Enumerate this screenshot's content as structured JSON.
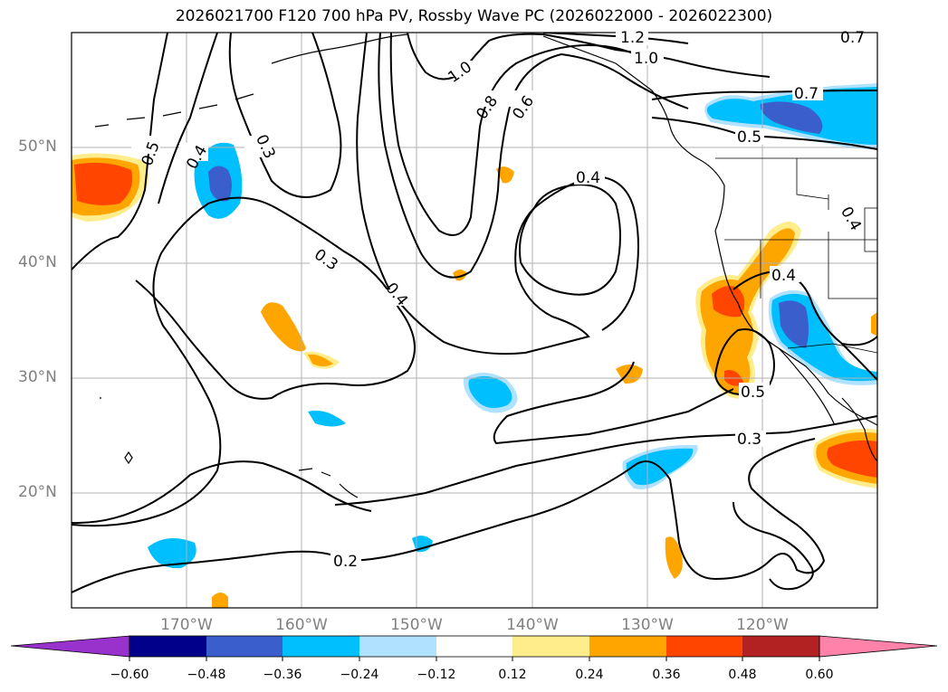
{
  "title": "2026021700 F120 700 hPa PV, Rossby Wave PC (2026022000 - 2026022300)",
  "lat_labels": [
    "50°N",
    "40°N",
    "30°N",
    "20°N"
  ],
  "lon_labels": [
    "170°W",
    "160°W",
    "150°W",
    "140°W",
    "130°W",
    "120°W"
  ],
  "contour_labels": [
    "1.2",
    "1.0",
    "1.0",
    "0.8",
    "0.6",
    "0.7",
    "0.7",
    "0.5",
    "0.5",
    "0.4",
    "0.3",
    "0.4",
    "0.3",
    "0.4",
    "0.4",
    "0.4",
    "0.5",
    "0.3",
    "0.2"
  ],
  "colorbar": {
    "ticks": [
      "−0.60",
      "−0.48",
      "−0.36",
      "−0.24",
      "−0.12",
      "0.12",
      "0.24",
      "0.36",
      "0.48",
      "0.60"
    ],
    "colors": [
      "#9932cc",
      "#00008b",
      "#3a5fcd",
      "#00bfff",
      "#b0e2ff",
      "#ffffff",
      "#ffec8b",
      "#ffa500",
      "#ff4500",
      "#b22222",
      "#ff82ab",
      "#ff82ab"
    ]
  },
  "colors": {
    "neg_low": "#b0e2ff",
    "neg_mid": "#00bfff",
    "neg_high": "#3a5fcd",
    "neg_max": "#00008b",
    "pos_low": "#ffec8b",
    "pos_mid": "#ffa500",
    "pos_high": "#ff4500",
    "pos_max": "#b22222",
    "grid": "#b0b0b0"
  }
}
